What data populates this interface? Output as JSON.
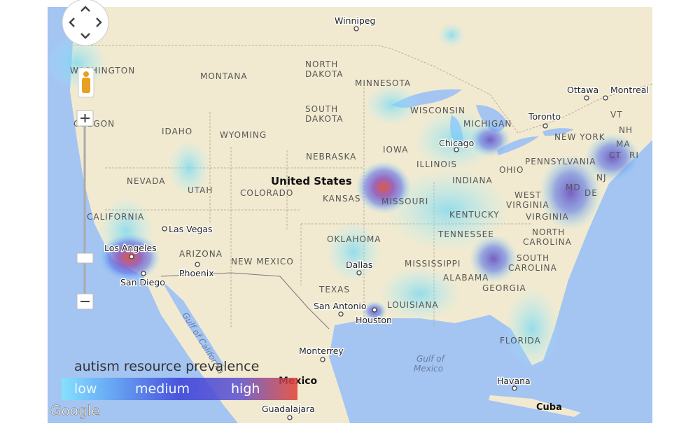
{
  "map": {
    "cities": [
      "Winnipeg",
      "Ottawa",
      "Montreal",
      "Toronto",
      "Chicago",
      "Las Vegas",
      "Los Angeles",
      "San Diego",
      "Phoenix",
      "Dallas",
      "San Antonio",
      "Houston",
      "Monterrey",
      "Havana",
      "Guadalajara"
    ],
    "states": [
      "WASHINGTON",
      "OREGON",
      "MONTANA",
      [
        "NORTH",
        "DAKOTA"
      ],
      "MINNESOTA",
      [
        "SOUTH",
        "DAKOTA"
      ],
      "WISCONSIN",
      "MICHIGAN",
      "IDAHO",
      "WYOMING",
      "NEBRASKA",
      "IOWA",
      "ILLINOIS",
      "NEVADA",
      "UTAH",
      "COLORADO",
      "KANSAS",
      "MISSOURI",
      "INDIANA",
      "OHIO",
      "PENNSYLVANIA",
      "NEW YORK",
      "VT",
      "NH",
      "MA",
      "CT",
      "RI",
      "NJ",
      "MD",
      "DE",
      [
        "WEST",
        "VIRGINIA"
      ],
      "VIRGINIA",
      "KENTUCKY",
      "TENNESSEE",
      [
        "NORTH",
        "CAROLINA"
      ],
      [
        "SOUTH",
        "CAROLINA"
      ],
      "CALIFORNIA",
      "ARIZONA",
      "NEW MEXICO",
      "OKLAHOMA",
      "MISSISSIPPI",
      "ALABAMA",
      "GEORGIA",
      "LOUISIANA",
      "TEXAS",
      "FLORIDA"
    ],
    "countries": [
      "United States",
      "Mexico",
      "Cuba"
    ],
    "water": [
      [
        "Gulf of",
        "Mexico"
      ],
      "Gulf of California"
    ]
  },
  "legend": {
    "title": "autism resource prevalence",
    "levels": [
      "low",
      "medium",
      "high"
    ]
  },
  "attribution": "Google"
}
